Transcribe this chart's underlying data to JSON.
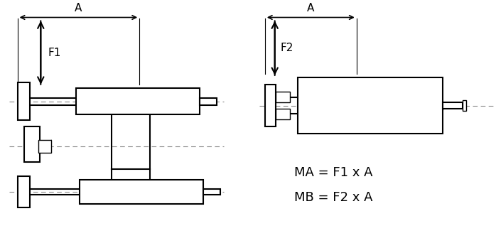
{
  "bg_color": "#ffffff",
  "line_color": "#000000",
  "dash_color": "#888888",
  "fig_width": 6.98,
  "fig_height": 3.42,
  "formula_line1": "MA = F1 x A",
  "formula_line2": "MB = F2 x A",
  "label_A1": "A",
  "label_F1": "F1",
  "label_A2": "A",
  "label_F2": "F2"
}
